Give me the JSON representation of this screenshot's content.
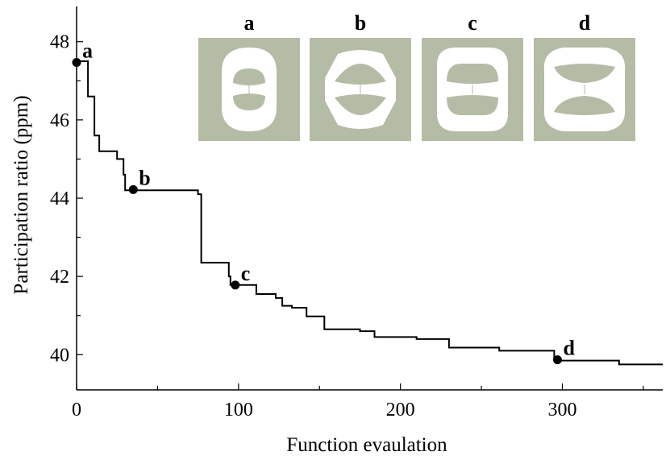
{
  "chart_data": {
    "type": "line",
    "xlabel": "Function evaulation",
    "ylabel": "Participation ratio (ppm)",
    "xlim": [
      0,
      362
    ],
    "ylim": [
      39.1,
      48.9
    ],
    "xticks": [
      0,
      100,
      200,
      300
    ],
    "yticks": [
      40,
      42,
      44,
      46,
      48
    ],
    "grid": false,
    "series": [
      {
        "style": "step",
        "points": [
          [
            0,
            47.5
          ],
          [
            7,
            47.5
          ],
          [
            7,
            46.6
          ],
          [
            11,
            46.6
          ],
          [
            11,
            45.6
          ],
          [
            14,
            45.6
          ],
          [
            14,
            45.2
          ],
          [
            25,
            45.2
          ],
          [
            25,
            45.0
          ],
          [
            29,
            45.0
          ],
          [
            29,
            44.6
          ],
          [
            30,
            44.6
          ],
          [
            30,
            44.2
          ],
          [
            75,
            44.2
          ],
          [
            75,
            44.1
          ],
          [
            77,
            44.1
          ],
          [
            77,
            42.35
          ],
          [
            94,
            42.35
          ],
          [
            94,
            42.0
          ],
          [
            95,
            42.0
          ],
          [
            95,
            41.78
          ],
          [
            111,
            41.78
          ],
          [
            111,
            41.55
          ],
          [
            123,
            41.55
          ],
          [
            123,
            41.45
          ],
          [
            127,
            41.45
          ],
          [
            127,
            41.25
          ],
          [
            133,
            41.25
          ],
          [
            133,
            41.2
          ],
          [
            142,
            41.2
          ],
          [
            142,
            40.98
          ],
          [
            153,
            40.98
          ],
          [
            153,
            40.65
          ],
          [
            175,
            40.65
          ],
          [
            175,
            40.6
          ],
          [
            184,
            40.6
          ],
          [
            184,
            40.45
          ],
          [
            210,
            40.45
          ],
          [
            210,
            40.4
          ],
          [
            230,
            40.4
          ],
          [
            230,
            40.18
          ],
          [
            261,
            40.18
          ],
          [
            261,
            40.1
          ],
          [
            295,
            40.1
          ],
          [
            295,
            39.85
          ],
          [
            335,
            39.85
          ],
          [
            335,
            39.75
          ],
          [
            362,
            39.75
          ]
        ]
      }
    ],
    "markers": [
      {
        "label": "a",
        "x": 0,
        "y": 47.47
      },
      {
        "label": "b",
        "x": 35,
        "y": 44.22
      },
      {
        "label": "c",
        "x": 98,
        "y": 41.78
      },
      {
        "label": "d",
        "x": 297,
        "y": 39.87
      }
    ],
    "insets": [
      {
        "label": "a",
        "shape": "a"
      },
      {
        "label": "b",
        "shape": "b"
      },
      {
        "label": "c",
        "shape": "c"
      },
      {
        "label": "d",
        "shape": "d"
      }
    ],
    "colors": {
      "line": "#000000",
      "inset_background": "#b5bca6",
      "inset_foreground": "#ffffff"
    }
  }
}
